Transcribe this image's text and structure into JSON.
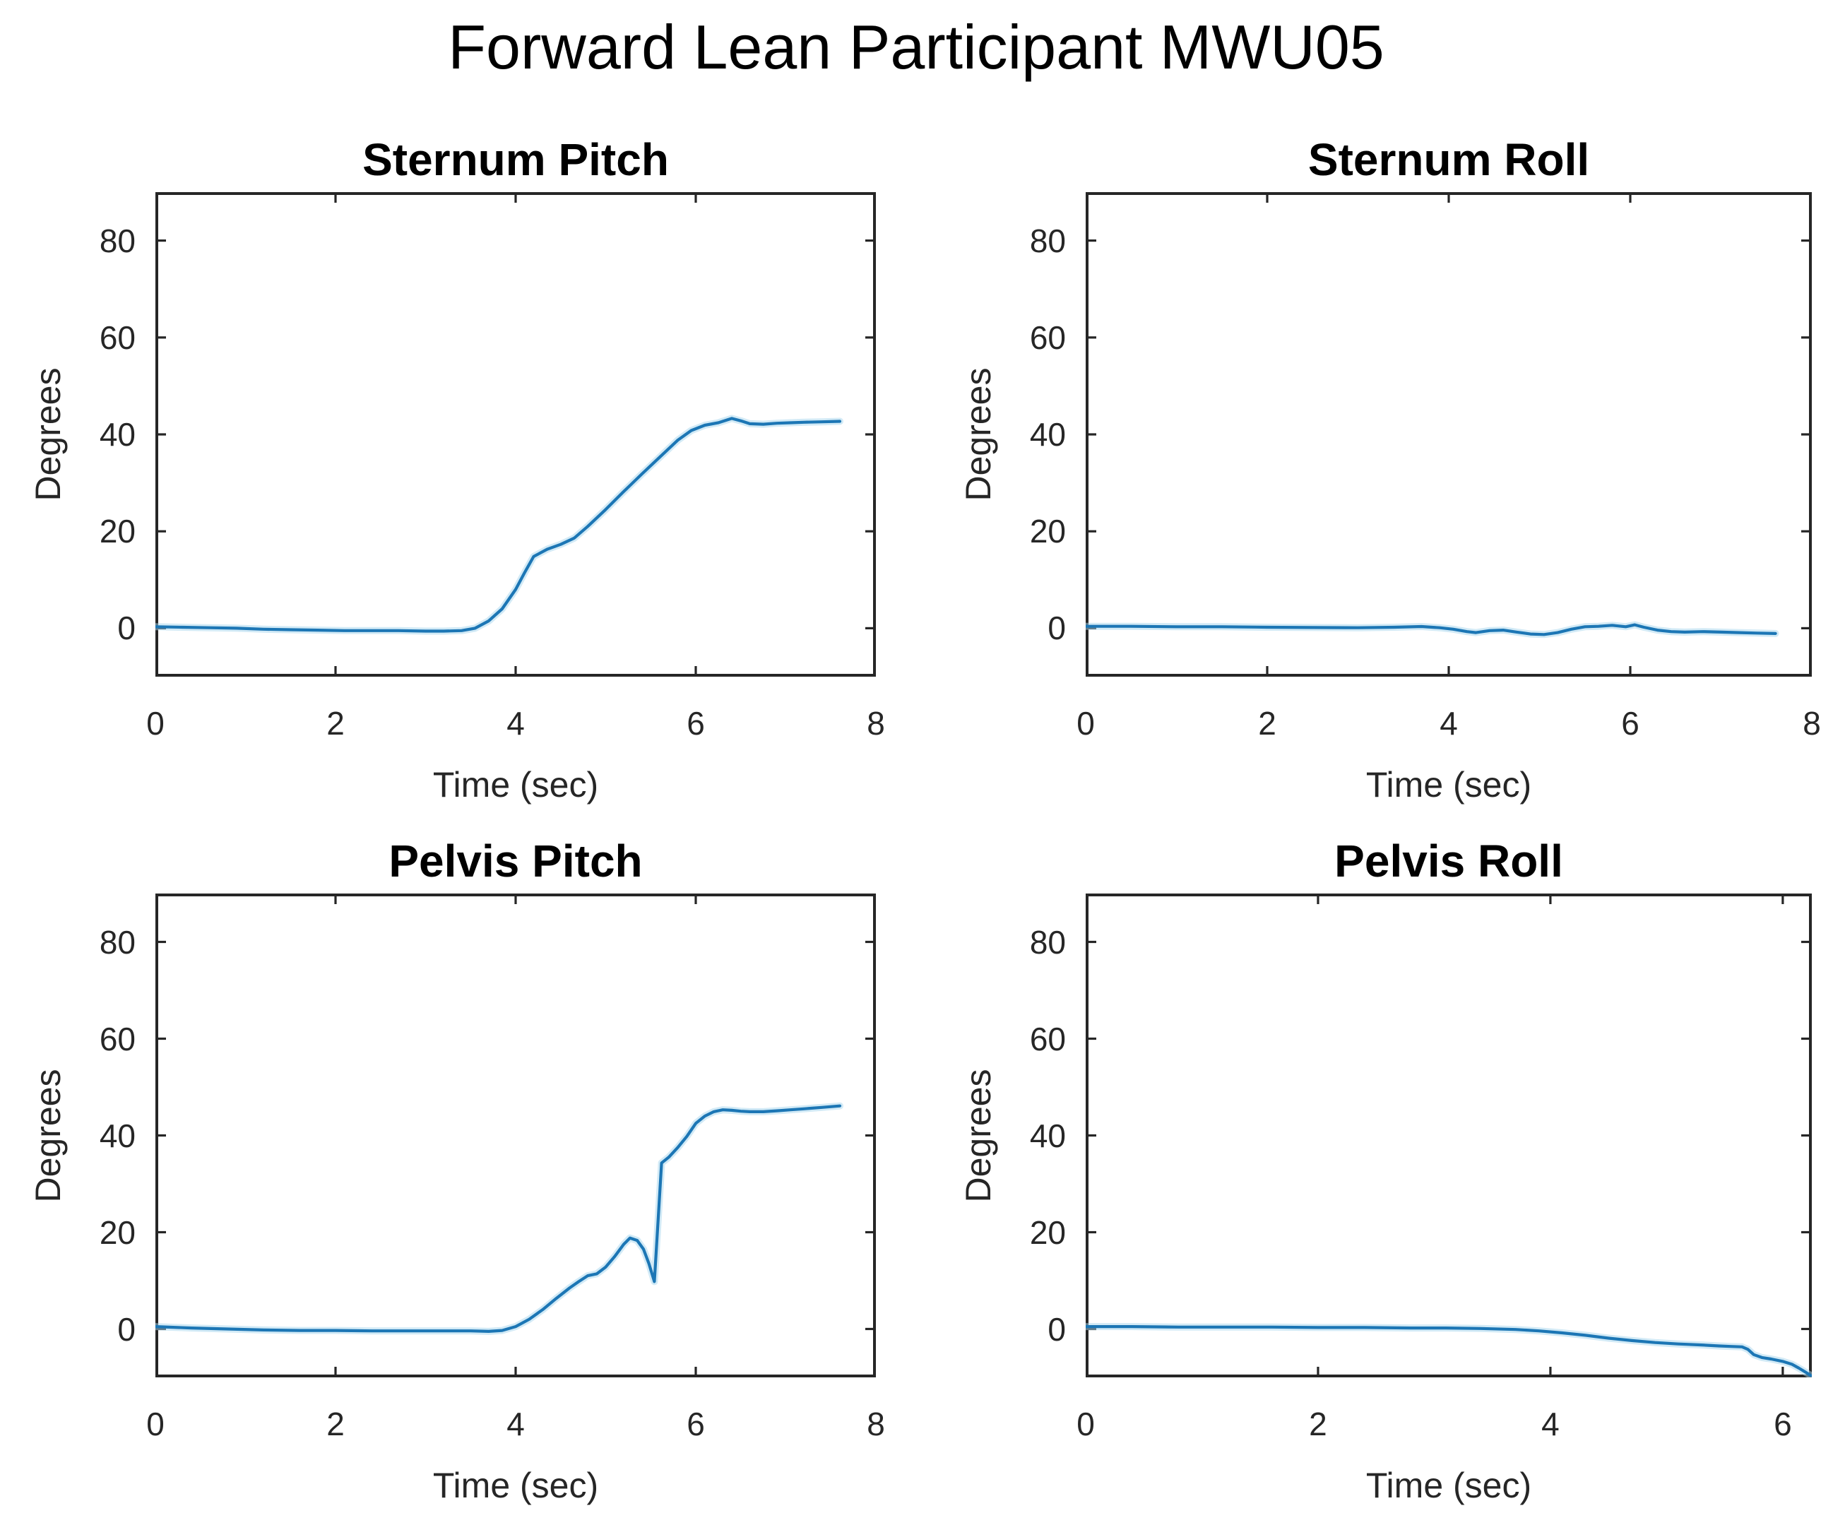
{
  "figure": {
    "title": "Forward Lean Participant MWU05",
    "background": "#ffffff",
    "axis_color": "#262626",
    "line_color": "#1c76b5",
    "line_halo_color": "#a6d5ee"
  },
  "chart_data": [
    {
      "type": "line",
      "title": "Sternum Pitch",
      "xlabel": "Time (sec)",
      "ylabel": "Degrees",
      "xlim": [
        0,
        8
      ],
      "ylim": [
        -10,
        90
      ],
      "xticks": [
        0,
        2,
        4,
        6,
        8
      ],
      "yticks": [
        0,
        20,
        40,
        60,
        80
      ],
      "grid": false,
      "legend": null,
      "x": [
        0,
        0.3,
        0.6,
        0.9,
        1.2,
        1.5,
        1.8,
        2.1,
        2.4,
        2.7,
        3.0,
        3.2,
        3.4,
        3.55,
        3.7,
        3.85,
        4.0,
        4.1,
        4.2,
        4.35,
        4.5,
        4.65,
        4.8,
        5.0,
        5.2,
        5.4,
        5.6,
        5.8,
        5.95,
        6.1,
        6.25,
        6.4,
        6.5,
        6.6,
        6.75,
        6.9,
        7.05,
        7.2,
        7.4,
        7.6
      ],
      "y": [
        0.3,
        0.2,
        0.1,
        0.0,
        -0.2,
        -0.3,
        -0.4,
        -0.5,
        -0.5,
        -0.5,
        -0.6,
        -0.6,
        -0.5,
        0.0,
        1.5,
        4.0,
        8.0,
        11.5,
        14.8,
        16.3,
        17.3,
        18.6,
        21.0,
        24.5,
        28.2,
        31.8,
        35.3,
        38.8,
        40.8,
        41.9,
        42.4,
        43.3,
        42.8,
        42.2,
        42.1,
        42.3,
        42.4,
        42.5,
        42.6,
        42.7
      ]
    },
    {
      "type": "line",
      "title": "Sternum Roll",
      "xlabel": "Time (sec)",
      "ylabel": "Degrees",
      "xlim": [
        0,
        8
      ],
      "ylim": [
        -10,
        90
      ],
      "xticks": [
        0,
        2,
        4,
        6,
        8
      ],
      "yticks": [
        0,
        20,
        40,
        60,
        80
      ],
      "grid": false,
      "legend": null,
      "x": [
        0,
        0.5,
        1.0,
        1.5,
        2.0,
        2.5,
        3.0,
        3.4,
        3.7,
        3.9,
        4.05,
        4.2,
        4.3,
        4.45,
        4.6,
        4.75,
        4.9,
        5.05,
        5.2,
        5.35,
        5.5,
        5.65,
        5.8,
        5.95,
        6.05,
        6.15,
        6.3,
        6.45,
        6.6,
        6.8,
        7.0,
        7.2,
        7.4,
        7.6
      ],
      "y": [
        0.4,
        0.4,
        0.3,
        0.3,
        0.2,
        0.15,
        0.1,
        0.2,
        0.35,
        0.1,
        -0.2,
        -0.7,
        -0.9,
        -0.5,
        -0.4,
        -0.8,
        -1.2,
        -1.3,
        -0.9,
        -0.2,
        0.3,
        0.4,
        0.6,
        0.3,
        0.7,
        0.2,
        -0.4,
        -0.7,
        -0.8,
        -0.7,
        -0.8,
        -0.9,
        -1.0,
        -1.1
      ]
    },
    {
      "type": "line",
      "title": "Pelvis Pitch",
      "xlabel": "Time (sec)",
      "ylabel": "Degrees",
      "xlim": [
        0,
        8
      ],
      "ylim": [
        -10,
        90
      ],
      "xticks": [
        0,
        2,
        4,
        6,
        8
      ],
      "yticks": [
        0,
        20,
        40,
        60,
        80
      ],
      "grid": false,
      "legend": null,
      "x": [
        0,
        0.4,
        0.8,
        1.2,
        1.6,
        2.0,
        2.4,
        2.8,
        3.2,
        3.5,
        3.7,
        3.85,
        4.0,
        4.15,
        4.3,
        4.45,
        4.6,
        4.7,
        4.8,
        4.9,
        5.0,
        5.1,
        5.2,
        5.27,
        5.35,
        5.42,
        5.48,
        5.54,
        5.58,
        5.62,
        5.7,
        5.8,
        5.9,
        6.0,
        6.1,
        6.2,
        6.3,
        6.4,
        6.5,
        6.6,
        6.75,
        6.9,
        7.05,
        7.2,
        7.4,
        7.6
      ],
      "y": [
        0.5,
        0.2,
        0.0,
        -0.2,
        -0.3,
        -0.3,
        -0.4,
        -0.4,
        -0.4,
        -0.4,
        -0.5,
        -0.3,
        0.5,
        2.0,
        4.0,
        6.3,
        8.5,
        9.8,
        11.0,
        11.4,
        12.8,
        15.0,
        17.5,
        18.8,
        18.3,
        16.5,
        13.5,
        9.8,
        22.0,
        34.3,
        35.5,
        37.5,
        39.8,
        42.5,
        44.0,
        44.9,
        45.3,
        45.2,
        45.0,
        44.9,
        44.9,
        45.1,
        45.3,
        45.5,
        45.8,
        46.1
      ]
    },
    {
      "type": "line",
      "title": "Pelvis Roll",
      "xlabel": "Time (sec)",
      "ylabel": "Degrees",
      "xlim": [
        0,
        6.25
      ],
      "ylim": [
        -10,
        90
      ],
      "xticks": [
        0,
        2,
        4,
        6
      ],
      "yticks": [
        0,
        20,
        40,
        60,
        80
      ],
      "grid": false,
      "legend": null,
      "x": [
        0,
        0.4,
        0.8,
        1.2,
        1.6,
        2.0,
        2.4,
        2.8,
        3.1,
        3.4,
        3.7,
        3.9,
        4.1,
        4.3,
        4.5,
        4.7,
        4.9,
        5.1,
        5.3,
        5.45,
        5.55,
        5.65,
        5.7,
        5.75,
        5.82,
        5.9,
        6.0,
        6.08,
        6.14,
        6.2,
        6.24
      ],
      "y": [
        0.5,
        0.5,
        0.4,
        0.4,
        0.4,
        0.3,
        0.3,
        0.2,
        0.2,
        0.1,
        -0.1,
        -0.4,
        -0.8,
        -1.3,
        -1.9,
        -2.4,
        -2.8,
        -3.1,
        -3.3,
        -3.5,
        -3.6,
        -3.7,
        -4.2,
        -5.3,
        -5.9,
        -6.2,
        -6.7,
        -7.3,
        -8.1,
        -9.0,
        -9.6
      ]
    }
  ]
}
